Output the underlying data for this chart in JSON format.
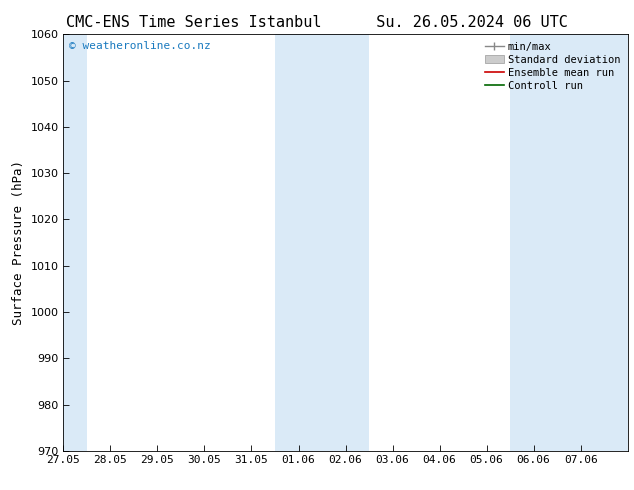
{
  "title_left": "CMC-ENS Time Series Istanbul",
  "title_right": "Su. 26.05.2024 06 UTC",
  "ylabel": "Surface Pressure (hPa)",
  "ylim": [
    970,
    1060
  ],
  "yticks": [
    970,
    980,
    990,
    1000,
    1010,
    1020,
    1030,
    1040,
    1050,
    1060
  ],
  "xtick_labels": [
    "27.05",
    "28.05",
    "29.05",
    "30.05",
    "31.05",
    "01.06",
    "02.06",
    "03.06",
    "04.06",
    "05.06",
    "06.06",
    "07.06"
  ],
  "n_cols": 12,
  "shaded_col_ranges": [
    [
      0,
      0.5
    ],
    [
      4.5,
      6.5
    ],
    [
      9.5,
      12.0
    ]
  ],
  "shaded_color": "#daeaf7",
  "background_color": "#ffffff",
  "watermark": "© weatheronline.co.nz",
  "watermark_color": "#1a7abf",
  "title_fontsize": 11,
  "axis_label_fontsize": 9,
  "tick_fontsize": 8,
  "watermark_fontsize": 8,
  "figsize": [
    6.34,
    4.9
  ],
  "dpi": 100
}
